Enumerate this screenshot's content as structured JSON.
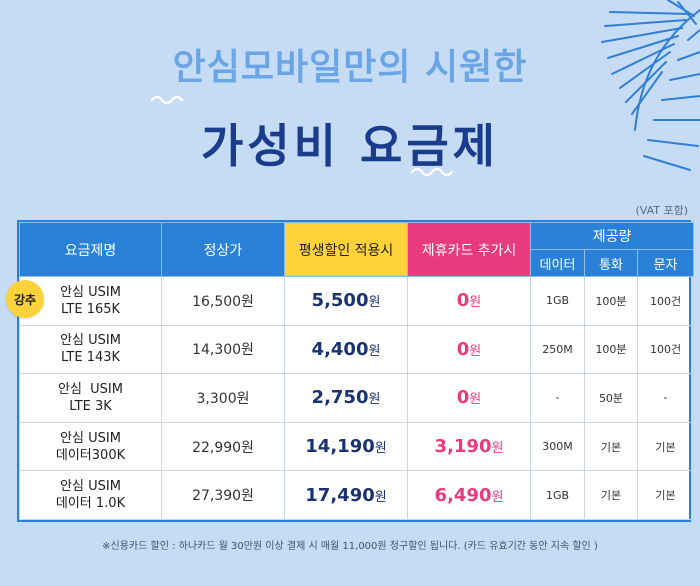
{
  "header": {
    "title_line1": "안심모바일만의 시원한",
    "title_line2": "가성비 요금제",
    "vat_note": "(VAT 포함)"
  },
  "badge": "강추",
  "table": {
    "headers": {
      "plan": "요금제명",
      "regular": "정상가",
      "discount": "평생할인 적용시",
      "card": "제휴카드 추가시",
      "provided": "제공량",
      "data": "데이터",
      "call": "통화",
      "sms": "문자"
    },
    "rows": [
      {
        "name1": "안심 USIM",
        "name2": "LTE 165K",
        "regular": "16,500원",
        "discount": "5,500",
        "card": "0",
        "data": "1GB",
        "call": "100분",
        "sms": "100건"
      },
      {
        "name1": "안심 USIM",
        "name2": "LTE 143K",
        "regular": "14,300원",
        "discount": "4,400",
        "card": "0",
        "data": "250M",
        "call": "100분",
        "sms": "100건"
      },
      {
        "name1": "안심  USIM",
        "name2": "LTE 3K",
        "regular": "3,300원",
        "discount": "2,750",
        "card": "0",
        "data": "-",
        "call": "50분",
        "sms": "-"
      },
      {
        "name1": "안심 USIM",
        "name2": "데이터300K",
        "regular": "22,990원",
        "discount": "14,190",
        "card": "3,190",
        "data": "300M",
        "call": "기본",
        "sms": "기본"
      },
      {
        "name1": "안심 USIM",
        "name2": "데이터 1.0K",
        "regular": "27,390원",
        "discount": "17,490",
        "card": "6,490",
        "data": "1GB",
        "call": "기본",
        "sms": "기본"
      }
    ],
    "unit": "원"
  },
  "footnote": "※신용카드 할인 : 하나카드 월 30만원 이상 결제 시 매월 11,000원 청구할인 됩니다. (카드 유효기간 동안 지속 할인 )",
  "colors": {
    "background": "#c6dcf4",
    "header_blue": "#2a82d8",
    "highlight_yellow": "#ffd23a",
    "highlight_pink": "#e83a7c",
    "title_navy": "#1a3c8c"
  }
}
